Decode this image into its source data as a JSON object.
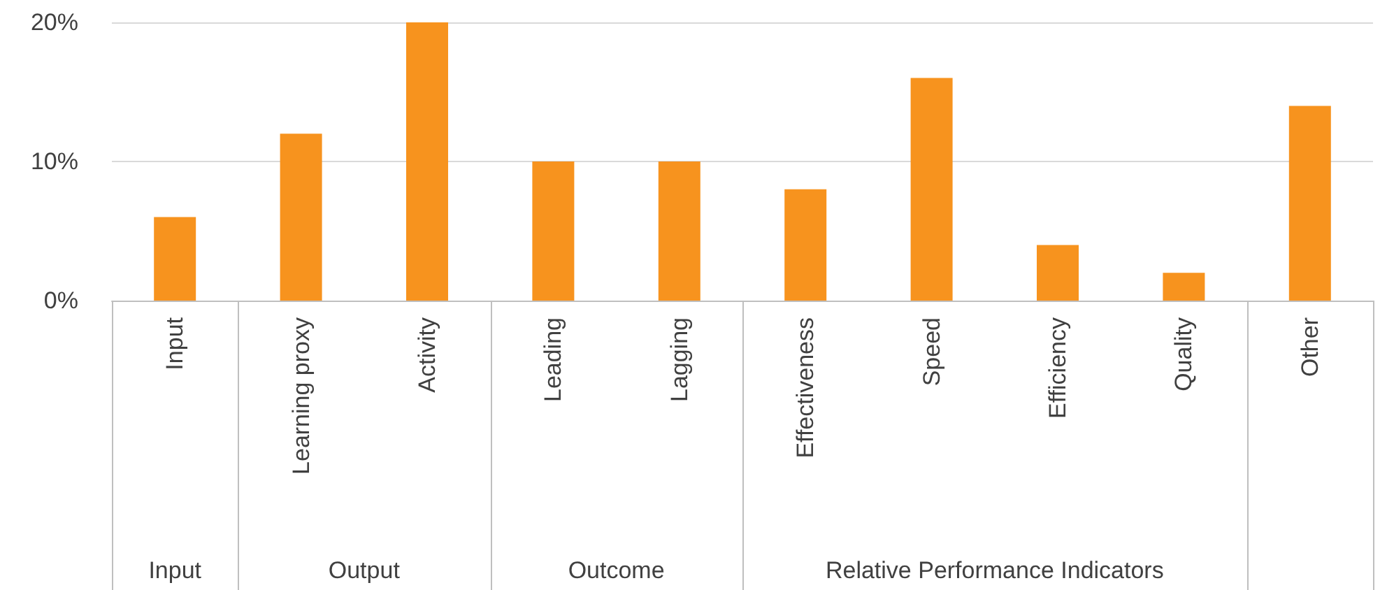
{
  "chart_data": {
    "type": "bar",
    "categories": [
      "Input",
      "Learning proxy",
      "Activity",
      "Leading",
      "Lagging",
      "Effectiveness",
      "Speed",
      "Efficiency",
      "Quality",
      "Other"
    ],
    "values": [
      6,
      12,
      20,
      10,
      10,
      8,
      16,
      4,
      2,
      14
    ],
    "color": "#f7931e",
    "ylim": [
      0,
      20
    ],
    "yticks": [
      {
        "value": 0,
        "label": "0%"
      },
      {
        "value": 10,
        "label": "10%"
      },
      {
        "value": 20,
        "label": "20%"
      }
    ],
    "grid": "y",
    "annotations": [
      "Input",
      "Output",
      "Outcome",
      "Relative Performance Indicators"
    ]
  }
}
